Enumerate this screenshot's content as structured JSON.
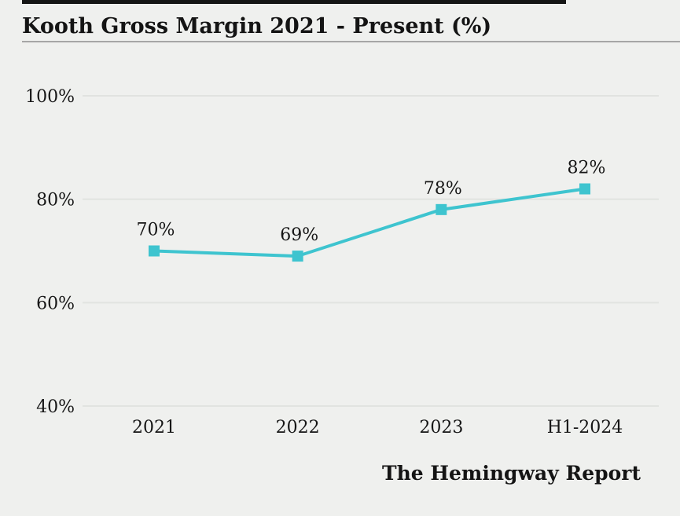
{
  "page": {
    "title": "Kooth Gross Margin 2021 - Present (%)",
    "attribution": "The Hemingway Report"
  },
  "colors": {
    "background": "#eff0ee",
    "accent_line": "#3ec4cf",
    "gridline": "#e1e3e0",
    "text": "#161616",
    "title_rule": "#a6a6a6",
    "top_rule": "#151515"
  },
  "chart_data": {
    "type": "line",
    "title": "Kooth Gross Margin 2021 - Present (%)",
    "categories": [
      "2021",
      "2022",
      "2023",
      "H1-2024"
    ],
    "values": [
      70,
      69,
      78,
      82
    ],
    "data_labels": [
      "70%",
      "69%",
      "78%",
      "82%"
    ],
    "xlabel": "",
    "ylabel": "",
    "ylim": [
      40,
      100
    ],
    "y_ticks": [
      100,
      80,
      60,
      40
    ],
    "y_tick_labels": [
      "100%",
      "80%",
      "60%",
      "40%"
    ],
    "grid": "horizontal",
    "legend": "none",
    "marker": "square",
    "attribution": "The Hemingway Report"
  }
}
